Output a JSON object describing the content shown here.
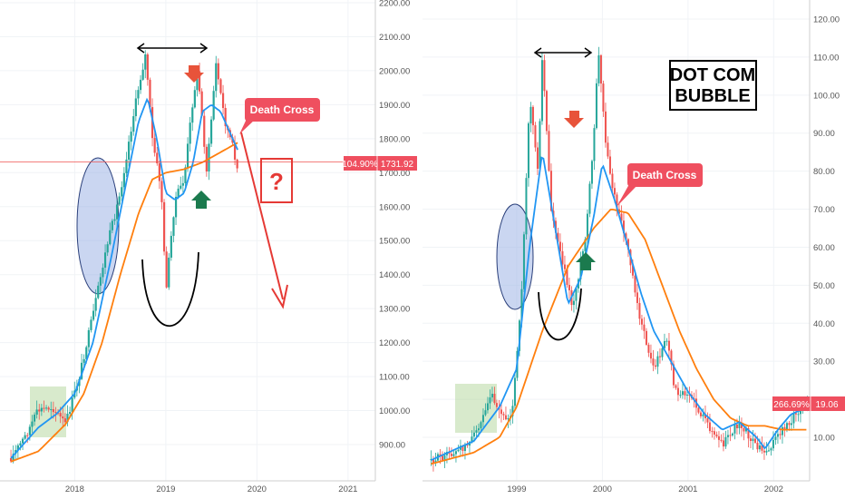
{
  "colors": {
    "up_candle": "#26a69a",
    "down_candle": "#ef5350",
    "ma_short": "#2196f3",
    "ma_long": "#ff7f0e",
    "annotation_red": "#e53935",
    "annotation_green": "#1b7a4e",
    "price_label_bg": "#ef4f5f"
  },
  "chart_data": [
    {
      "type": "candlestick",
      "y_scale": "linear",
      "ylim": [
        850,
        2200
      ],
      "y_ticks": [
        "2200.00",
        "2100.00",
        "2000.00",
        "1900.00",
        "1800.00",
        "1700.00",
        "1600.00",
        "1500.00",
        "1400.00",
        "1300.00",
        "1200.00",
        "1100.00",
        "1000.00",
        "900.00"
      ],
      "x_ticks": [
        "2018",
        "2019",
        "2020",
        "2021"
      ],
      "price_label": {
        "change": "104.90%",
        "price": "1731.92",
        "value": 1731.92
      },
      "callouts": [
        "Death Cross",
        "?"
      ],
      "series": [
        {
          "kind": "price",
          "x": [
            2017.3,
            2017.45,
            2017.6,
            2017.75,
            2017.9,
            2018.05,
            2018.2,
            2018.35,
            2018.5,
            2018.6,
            2018.7,
            2018.78,
            2018.85,
            2018.95,
            2019.0,
            2019.1,
            2019.2,
            2019.3,
            2019.35,
            2019.45,
            2019.55,
            2019.65,
            2019.75,
            2019.8
          ],
          "y": [
            860,
            920,
            1000,
            1010,
            960,
            1100,
            1280,
            1480,
            1640,
            1800,
            1950,
            2050,
            1800,
            1650,
            1350,
            1620,
            1680,
            1920,
            2000,
            1700,
            2020,
            1850,
            1760,
            1690
          ]
        },
        {
          "kind": "ma_short",
          "x": [
            2017.3,
            2017.6,
            2017.8,
            2018.0,
            2018.2,
            2018.4,
            2018.55,
            2018.7,
            2018.8,
            2018.9,
            2019.0,
            2019.1,
            2019.2,
            2019.3,
            2019.4,
            2019.5,
            2019.6,
            2019.7,
            2019.8
          ],
          "y": [
            860,
            950,
            990,
            1050,
            1200,
            1450,
            1650,
            1850,
            1920,
            1800,
            1640,
            1620,
            1640,
            1730,
            1880,
            1900,
            1880,
            1820,
            1760
          ]
        },
        {
          "kind": "ma_long",
          "x": [
            2017.3,
            2017.6,
            2017.9,
            2018.1,
            2018.3,
            2018.5,
            2018.7,
            2018.85,
            2019.0,
            2019.2,
            2019.4,
            2019.6,
            2019.8
          ],
          "y": [
            850,
            880,
            960,
            1050,
            1200,
            1400,
            1580,
            1680,
            1700,
            1710,
            1730,
            1760,
            1790
          ]
        }
      ]
    },
    {
      "type": "candlestick",
      "y_scale": "linear",
      "ylim": [
        0,
        125
      ],
      "y_ticks": [
        "120.00",
        "110.00",
        "100.00",
        "90.00",
        "80.00",
        "70.00",
        "60.00",
        "50.00",
        "40.00",
        "30.00",
        "20.00",
        "10.00"
      ],
      "x_ticks": [
        "1999",
        "2000",
        "2001",
        "2002"
      ],
      "price_label": {
        "change": "266.69%",
        "price": "19.06",
        "value": 19.06
      },
      "callouts": [
        "Death Cross"
      ],
      "title_box": [
        "DOT COM",
        "BUBBLE"
      ],
      "series": [
        {
          "kind": "price",
          "x": [
            1998.0,
            1998.3,
            1998.5,
            1998.7,
            1998.85,
            1998.95,
            1999.05,
            1999.15,
            1999.25,
            1999.3,
            1999.4,
            1999.55,
            1999.65,
            1999.8,
            1999.9,
            1999.95,
            2000.05,
            2000.15,
            2000.3,
            2000.45,
            2000.6,
            2000.75,
            2000.85,
            2001.0,
            2001.2,
            2001.4,
            2001.6,
            2001.75,
            2001.9,
            2002.1,
            2002.3,
            2002.4
          ],
          "y": [
            4,
            6,
            10,
            22,
            15,
            17,
            45,
            100,
            80,
            111,
            70,
            55,
            44,
            62,
            88,
            112,
            85,
            72,
            60,
            40,
            28,
            36,
            22,
            22,
            14,
            8,
            14,
            9,
            6,
            12,
            17,
            19
          ]
        },
        {
          "kind": "ma_short",
          "x": [
            1998.0,
            1998.5,
            1998.8,
            1999.0,
            1999.15,
            1999.3,
            1999.45,
            1999.6,
            1999.75,
            1999.9,
            2000.0,
            2000.15,
            2000.3,
            2000.45,
            2000.6,
            2000.8,
            2001.0,
            2001.2,
            2001.4,
            2001.6,
            2001.8,
            2001.9,
            2002.05,
            2002.2,
            2002.4
          ],
          "y": [
            4,
            9,
            18,
            28,
            60,
            85,
            65,
            45,
            52,
            68,
            82,
            72,
            60,
            48,
            38,
            30,
            22,
            16,
            12,
            14,
            10,
            7,
            12,
            16,
            18
          ]
        },
        {
          "kind": "ma_long",
          "x": [
            1998.0,
            1998.5,
            1998.8,
            1999.0,
            1999.3,
            1999.6,
            1999.9,
            2000.1,
            2000.3,
            2000.5,
            2000.7,
            2000.9,
            2001.1,
            2001.3,
            2001.5,
            2001.7,
            2001.9,
            2002.1,
            2002.4
          ],
          "y": [
            3,
            6,
            10,
            18,
            38,
            55,
            65,
            70,
            69,
            62,
            50,
            38,
            28,
            20,
            15,
            13,
            13,
            12,
            12
          ]
        }
      ]
    }
  ]
}
